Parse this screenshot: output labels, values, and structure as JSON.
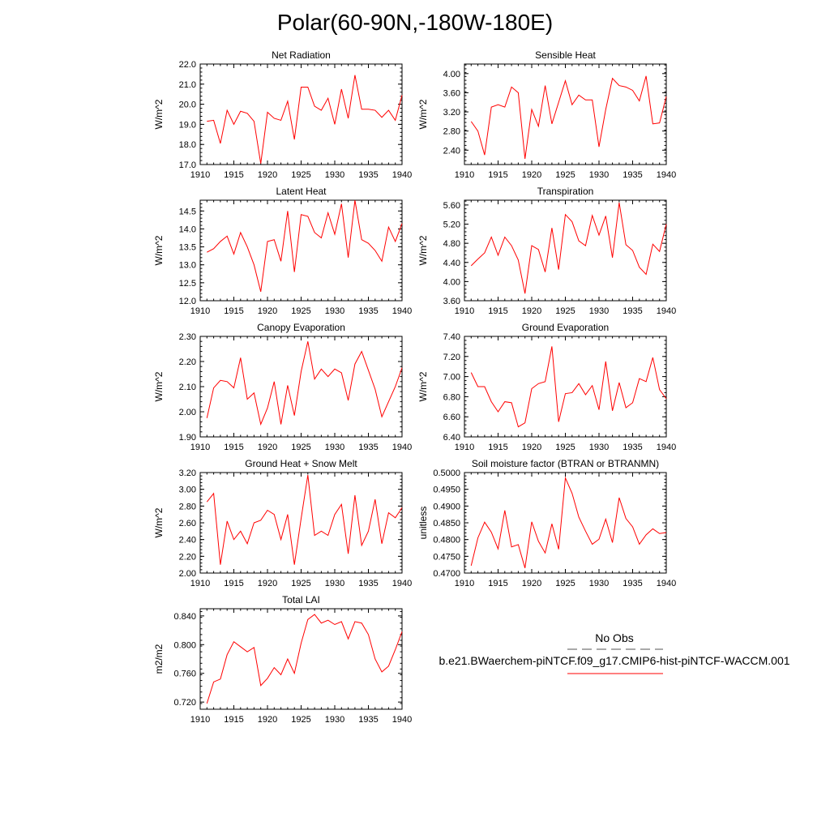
{
  "page": {
    "title": "Polar(60-90N,-180W-180E)"
  },
  "legend": {
    "obs_label": "No Obs",
    "case_label": "b.e21.BWaerchem-piNTCF.f09_g17.CMIP6-hist-piNTCF-WACCM.001",
    "obs_color": "#555555",
    "case_color": "#ff0000"
  },
  "colors": {
    "series": "#ff0000",
    "axis": "#000000"
  },
  "chart_data": [
    {
      "type": "line",
      "title": "Net Radiation",
      "xlabel": "",
      "ylabel": "W/m^2",
      "xlim": [
        1910,
        1940
      ],
      "ylim": [
        17.0,
        22.0
      ],
      "xticks": [
        "1910",
        "1915",
        "1920",
        "1925",
        "1930",
        "1935",
        "1940"
      ],
      "yticks": [
        "17.0",
        "18.0",
        "19.0",
        "20.0",
        "21.0",
        "22.0"
      ],
      "ytick_values": [
        17.0,
        18.0,
        19.0,
        20.0,
        21.0,
        22.0
      ],
      "x": [
        1911,
        1912,
        1913,
        1914,
        1915,
        1916,
        1917,
        1918,
        1919,
        1920,
        1921,
        1922,
        1923,
        1924,
        1925,
        1926,
        1927,
        1928,
        1929,
        1930,
        1931,
        1932,
        1933,
        1934,
        1935,
        1936,
        1937,
        1938,
        1939,
        1940
      ],
      "series": [
        {
          "values": [
            19.15,
            19.2,
            18.05,
            19.7,
            19.0,
            19.65,
            19.55,
            19.15,
            17.05,
            19.6,
            19.3,
            19.2,
            20.15,
            18.25,
            20.85,
            20.85,
            19.9,
            19.7,
            20.3,
            19.0,
            20.75,
            19.3,
            21.45,
            19.75,
            19.75,
            19.7,
            19.35,
            19.7,
            19.2,
            20.45
          ]
        }
      ]
    },
    {
      "type": "line",
      "title": "Sensible Heat",
      "xlabel": "",
      "ylabel": "W/m^2",
      "xlim": [
        1910,
        1940
      ],
      "ylim": [
        2.1,
        4.2
      ],
      "xticks": [
        "1910",
        "1915",
        "1920",
        "1925",
        "1930",
        "1935",
        "1940"
      ],
      "yticks": [
        "2.40",
        "2.80",
        "3.20",
        "3.60",
        "4.00"
      ],
      "ytick_values": [
        2.4,
        2.8,
        3.2,
        3.6,
        4.0
      ],
      "x": [
        1911,
        1912,
        1913,
        1914,
        1915,
        1916,
        1917,
        1918,
        1919,
        1920,
        1921,
        1922,
        1923,
        1924,
        1925,
        1926,
        1927,
        1928,
        1929,
        1930,
        1931,
        1932,
        1933,
        1934,
        1935,
        1936,
        1937,
        1938,
        1939,
        1940
      ],
      "series": [
        {
          "values": [
            3.0,
            2.8,
            2.3,
            3.3,
            3.35,
            3.3,
            3.72,
            3.6,
            2.22,
            3.25,
            2.9,
            3.75,
            2.95,
            3.4,
            3.85,
            3.35,
            3.55,
            3.45,
            3.45,
            2.47,
            3.25,
            3.9,
            3.75,
            3.72,
            3.65,
            3.43,
            3.95,
            2.95,
            2.97,
            3.52
          ]
        }
      ]
    },
    {
      "type": "line",
      "title": "Latent Heat",
      "xlabel": "",
      "ylabel": "W/m^2",
      "xlim": [
        1910,
        1940
      ],
      "ylim": [
        12.0,
        14.8
      ],
      "xticks": [
        "1910",
        "1915",
        "1920",
        "1925",
        "1930",
        "1935",
        "1940"
      ],
      "yticks": [
        "12.0",
        "12.5",
        "13.0",
        "13.5",
        "14.0",
        "14.5"
      ],
      "ytick_values": [
        12.0,
        12.5,
        13.0,
        13.5,
        14.0,
        14.5
      ],
      "x": [
        1911,
        1912,
        1913,
        1914,
        1915,
        1916,
        1917,
        1918,
        1919,
        1920,
        1921,
        1922,
        1923,
        1924,
        1925,
        1926,
        1927,
        1928,
        1929,
        1930,
        1931,
        1932,
        1933,
        1934,
        1935,
        1936,
        1937,
        1938,
        1939,
        1940
      ],
      "series": [
        {
          "values": [
            13.35,
            13.45,
            13.65,
            13.8,
            13.3,
            13.9,
            13.5,
            13.0,
            12.25,
            13.65,
            13.7,
            13.1,
            14.5,
            12.8,
            14.4,
            14.35,
            13.9,
            13.75,
            14.45,
            13.85,
            14.7,
            13.2,
            14.8,
            13.7,
            13.6,
            13.4,
            13.1,
            14.05,
            13.65,
            14.15
          ]
        }
      ]
    },
    {
      "type": "line",
      "title": "Transpiration",
      "xlabel": "",
      "ylabel": "W/m^2",
      "xlim": [
        1910,
        1940
      ],
      "ylim": [
        3.6,
        5.7
      ],
      "xticks": [
        "1910",
        "1915",
        "1920",
        "1925",
        "1930",
        "1935",
        "1940"
      ],
      "yticks": [
        "3.60",
        "4.00",
        "4.40",
        "4.80",
        "5.20",
        "5.60"
      ],
      "ytick_values": [
        3.6,
        4.0,
        4.4,
        4.8,
        5.2,
        5.6
      ],
      "x": [
        1911,
        1912,
        1913,
        1914,
        1915,
        1916,
        1917,
        1918,
        1919,
        1920,
        1921,
        1922,
        1923,
        1924,
        1925,
        1926,
        1927,
        1928,
        1929,
        1930,
        1931,
        1932,
        1933,
        1934,
        1935,
        1936,
        1937,
        1938,
        1939,
        1940
      ],
      "series": [
        {
          "values": [
            4.33,
            4.47,
            4.6,
            4.93,
            4.55,
            4.93,
            4.75,
            4.45,
            3.75,
            4.75,
            4.67,
            4.2,
            5.12,
            4.25,
            5.4,
            5.25,
            4.85,
            4.75,
            5.38,
            4.97,
            5.37,
            4.5,
            5.65,
            4.77,
            4.65,
            4.3,
            4.15,
            4.78,
            4.63,
            5.2
          ]
        }
      ]
    },
    {
      "type": "line",
      "title": "Canopy Evaporation",
      "xlabel": "",
      "ylabel": "W/m^2",
      "xlim": [
        1910,
        1940
      ],
      "ylim": [
        1.9,
        2.3
      ],
      "xticks": [
        "1910",
        "1915",
        "1920",
        "1925",
        "1930",
        "1935",
        "1940"
      ],
      "yticks": [
        "1.90",
        "2.00",
        "2.10",
        "2.20",
        "2.30"
      ],
      "ytick_values": [
        1.9,
        2.0,
        2.1,
        2.2,
        2.3
      ],
      "x": [
        1911,
        1912,
        1913,
        1914,
        1915,
        1916,
        1917,
        1918,
        1919,
        1920,
        1921,
        1922,
        1923,
        1924,
        1925,
        1926,
        1927,
        1928,
        1929,
        1930,
        1931,
        1932,
        1933,
        1934,
        1935,
        1936,
        1937,
        1938,
        1939,
        1940
      ],
      "series": [
        {
          "values": [
            1.975,
            2.095,
            2.125,
            2.12,
            2.095,
            2.215,
            2.05,
            2.075,
            1.95,
            2.015,
            2.12,
            1.95,
            2.105,
            1.985,
            2.16,
            2.28,
            2.13,
            2.17,
            2.14,
            2.17,
            2.155,
            2.045,
            2.19,
            2.24,
            2.165,
            2.09,
            1.98,
            2.04,
            2.1,
            2.175
          ]
        }
      ]
    },
    {
      "type": "line",
      "title": "Ground Evaporation",
      "xlabel": "",
      "ylabel": "W/m^2",
      "xlim": [
        1910,
        1940
      ],
      "ylim": [
        6.4,
        7.4
      ],
      "xticks": [
        "1910",
        "1915",
        "1920",
        "1925",
        "1930",
        "1935",
        "1940"
      ],
      "yticks": [
        "6.40",
        "6.60",
        "6.80",
        "7.00",
        "7.20",
        "7.40"
      ],
      "ytick_values": [
        6.4,
        6.6,
        6.8,
        7.0,
        7.2,
        7.4
      ],
      "x": [
        1911,
        1912,
        1913,
        1914,
        1915,
        1916,
        1917,
        1918,
        1919,
        1920,
        1921,
        1922,
        1923,
        1924,
        1925,
        1926,
        1927,
        1928,
        1929,
        1930,
        1931,
        1932,
        1933,
        1934,
        1935,
        1936,
        1937,
        1938,
        1939,
        1940
      ],
      "series": [
        {
          "values": [
            7.04,
            6.9,
            6.9,
            6.75,
            6.65,
            6.75,
            6.74,
            6.5,
            6.54,
            6.88,
            6.93,
            6.95,
            7.3,
            6.55,
            6.83,
            6.84,
            6.93,
            6.82,
            6.91,
            6.67,
            7.15,
            6.66,
            6.94,
            6.69,
            6.74,
            6.98,
            6.95,
            7.19,
            6.87,
            6.78
          ]
        }
      ]
    },
    {
      "type": "line",
      "title": "Ground Heat + Snow Melt",
      "xlabel": "",
      "ylabel": "W/m^2",
      "xlim": [
        1910,
        1940
      ],
      "ylim": [
        2.0,
        3.2
      ],
      "xticks": [
        "1910",
        "1915",
        "1920",
        "1925",
        "1930",
        "1935",
        "1940"
      ],
      "yticks": [
        "2.00",
        "2.20",
        "2.40",
        "2.60",
        "2.80",
        "3.00",
        "3.20"
      ],
      "ytick_values": [
        2.0,
        2.2,
        2.4,
        2.6,
        2.8,
        3.0,
        3.2
      ],
      "x": [
        1911,
        1912,
        1913,
        1914,
        1915,
        1916,
        1917,
        1918,
        1919,
        1920,
        1921,
        1922,
        1923,
        1924,
        1925,
        1926,
        1927,
        1928,
        1929,
        1930,
        1931,
        1932,
        1933,
        1934,
        1935,
        1936,
        1937,
        1938,
        1939,
        1940
      ],
      "series": [
        {
          "values": [
            2.85,
            2.95,
            2.1,
            2.62,
            2.4,
            2.5,
            2.35,
            2.6,
            2.63,
            2.75,
            2.7,
            2.4,
            2.7,
            2.1,
            2.65,
            3.17,
            2.45,
            2.5,
            2.45,
            2.7,
            2.82,
            2.23,
            2.93,
            2.33,
            2.5,
            2.88,
            2.35,
            2.72,
            2.66,
            2.78
          ]
        }
      ]
    },
    {
      "type": "line",
      "title": "Soil moisture factor (BTRAN or BTRANMN)",
      "xlabel": "",
      "ylabel": "unitless",
      "xlim": [
        1910,
        1940
      ],
      "ylim": [
        0.47,
        0.5
      ],
      "xticks": [
        "1910",
        "1915",
        "1920",
        "1925",
        "1930",
        "1935",
        "1940"
      ],
      "yticks": [
        "0.4700",
        "0.4750",
        "0.4800",
        "0.4850",
        "0.4900",
        "0.4950",
        "0.5000"
      ],
      "ytick_values": [
        0.47,
        0.475,
        0.48,
        0.485,
        0.49,
        0.495,
        0.5
      ],
      "x": [
        1911,
        1912,
        1913,
        1914,
        1915,
        1916,
        1917,
        1918,
        1919,
        1920,
        1921,
        1922,
        1923,
        1924,
        1925,
        1926,
        1927,
        1928,
        1929,
        1930,
        1931,
        1932,
        1933,
        1934,
        1935,
        1936,
        1937,
        1938,
        1939,
        1940
      ],
      "series": [
        {
          "values": [
            0.4722,
            0.4805,
            0.4852,
            0.4822,
            0.4772,
            0.4887,
            0.4778,
            0.4785,
            0.4715,
            0.4853,
            0.4795,
            0.476,
            0.4847,
            0.4771,
            0.4984,
            0.4938,
            0.4867,
            0.4825,
            0.4786,
            0.4801,
            0.4861,
            0.4791,
            0.4925,
            0.4863,
            0.4838,
            0.4786,
            0.4814,
            0.4832,
            0.4818,
            0.4821
          ]
        }
      ]
    },
    {
      "type": "line",
      "title": "Total LAI",
      "xlabel": "",
      "ylabel": "m2/m2",
      "xlim": [
        1910,
        1940
      ],
      "ylim": [
        0.71,
        0.85
      ],
      "xticks": [
        "1910",
        "1915",
        "1920",
        "1925",
        "1930",
        "1935",
        "1940"
      ],
      "yticks": [
        "0.720",
        "0.760",
        "0.800",
        "0.840"
      ],
      "ytick_values": [
        0.72,
        0.76,
        0.8,
        0.84
      ],
      "x": [
        1911,
        1912,
        1913,
        1914,
        1915,
        1916,
        1917,
        1918,
        1919,
        1920,
        1921,
        1922,
        1923,
        1924,
        1925,
        1926,
        1927,
        1928,
        1929,
        1930,
        1931,
        1932,
        1933,
        1934,
        1935,
        1936,
        1937,
        1938,
        1939,
        1940
      ],
      "series": [
        {
          "values": [
            0.718,
            0.748,
            0.752,
            0.786,
            0.804,
            0.797,
            0.79,
            0.796,
            0.743,
            0.753,
            0.768,
            0.758,
            0.78,
            0.76,
            0.802,
            0.835,
            0.842,
            0.83,
            0.834,
            0.828,
            0.832,
            0.808,
            0.832,
            0.83,
            0.814,
            0.78,
            0.762,
            0.77,
            0.793,
            0.818
          ]
        }
      ]
    }
  ]
}
